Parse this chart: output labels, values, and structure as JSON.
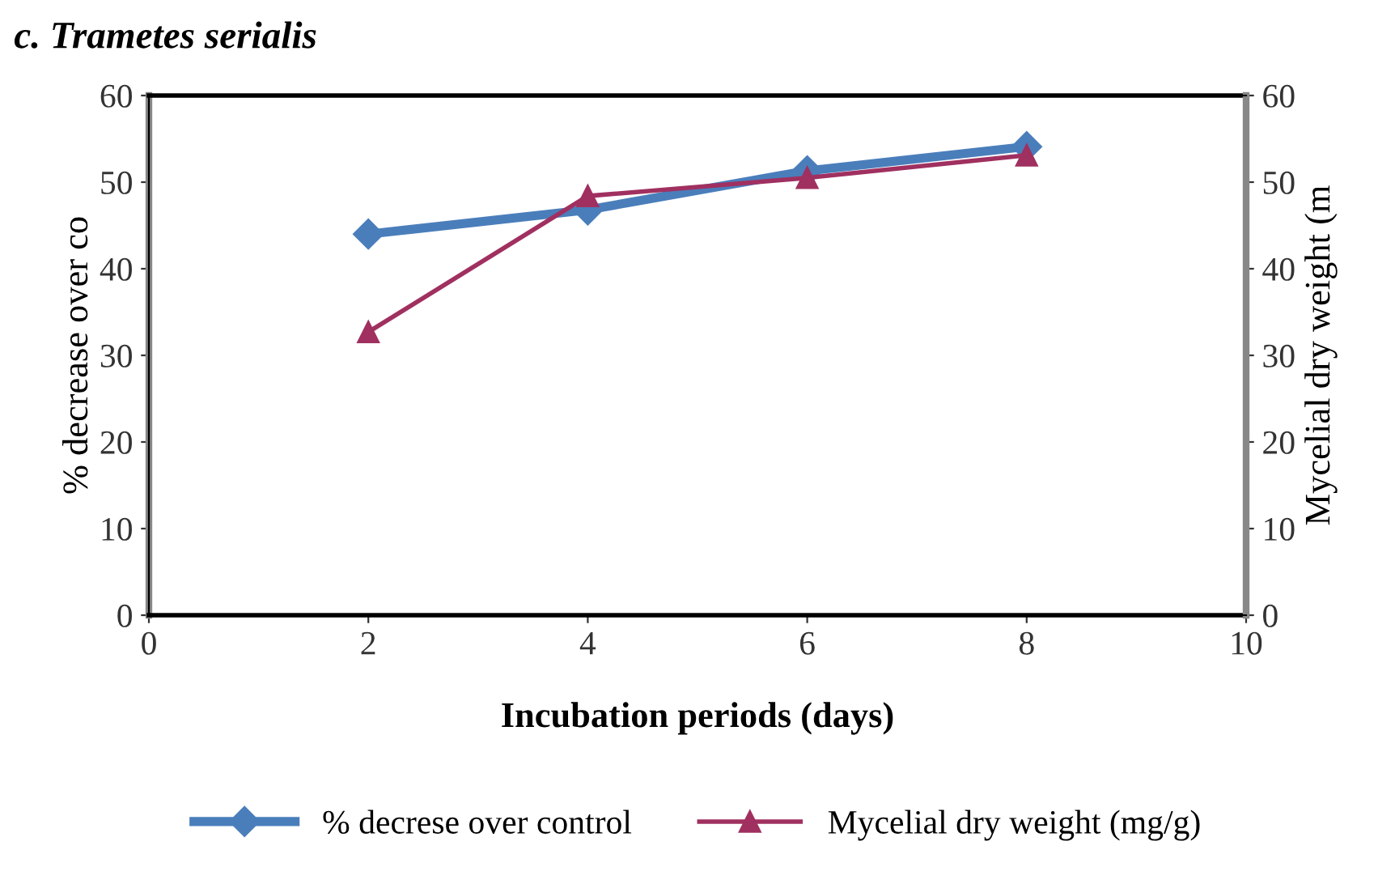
{
  "chart_data": {
    "type": "line",
    "title": "c. Trametes serialis",
    "xlabel": "Incubation periods (days)",
    "ylabel": "% decrease over co",
    "y2label": "Mycelial dry weight (m",
    "x": [
      2,
      4,
      6,
      8
    ],
    "series": [
      {
        "name": "% decrese over control",
        "color": "#4a7ebb",
        "values": [
          44,
          46.8,
          51.3,
          54.1
        ],
        "marker": "diamond"
      },
      {
        "name": "Mycelial dry weight (mg/g)",
        "color": "#a03060",
        "values": [
          32.7,
          48.4,
          50.5,
          53.1
        ],
        "marker": "triangle",
        "axis": "y2"
      }
    ],
    "xlim": [
      0,
      10
    ],
    "xticks": [
      0,
      2,
      4,
      6,
      8,
      10
    ],
    "ylim": [
      0,
      60
    ],
    "yticks": [
      0,
      10,
      20,
      30,
      40,
      50,
      60
    ],
    "y2lim": [
      0,
      60
    ],
    "y2ticks": [
      0,
      10,
      20,
      30,
      40,
      50,
      60
    ],
    "grid": false,
    "legend": "bottom",
    "line_style": "solid"
  }
}
